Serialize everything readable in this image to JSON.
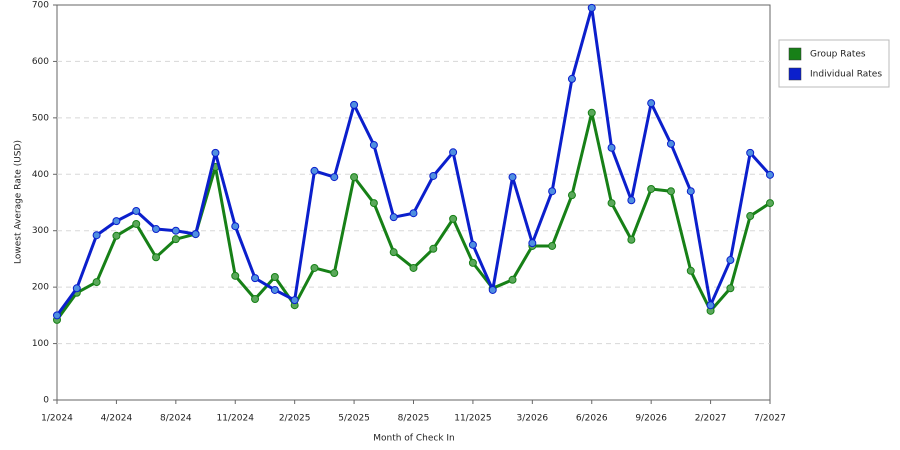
{
  "chart_data": {
    "type": "line",
    "x_label": "Month of Check In",
    "y_label": "Lowest Average Rate (USD)",
    "categories": [
      "1/2024",
      null,
      null,
      "4/2024",
      null,
      null,
      "8/2024",
      null,
      null,
      "11/2024",
      null,
      null,
      "2/2025",
      null,
      null,
      "5/2025",
      null,
      null,
      "8/2025",
      null,
      null,
      "11/2025",
      null,
      null,
      "3/2026",
      null,
      null,
      "6/2026",
      null,
      null,
      "9/2026",
      null,
      null,
      "2/2027",
      null,
      null,
      "7/2027"
    ],
    "series": [
      {
        "name": "Group Rates",
        "color": "#178017",
        "marker": "#5aa85a",
        "values": [
          142,
          190,
          209,
          291,
          312,
          253,
          285,
          294,
          413,
          220,
          179,
          218,
          168,
          234,
          225,
          395,
          349,
          262,
          234,
          268,
          321,
          243,
          198,
          213,
          273,
          273,
          363,
          509,
          349,
          284,
          374,
          370,
          229,
          158,
          198,
          326,
          349
        ]
      },
      {
        "name": "Individual Rates",
        "color": "#0b1fcc",
        "marker": "#4f8fe0",
        "values": [
          150,
          198,
          292,
          317,
          335,
          303,
          300,
          294,
          438,
          308,
          216,
          195,
          177,
          406,
          395,
          523,
          452,
          324,
          331,
          397,
          439,
          275,
          195,
          395,
          278,
          370,
          569,
          695,
          447,
          354,
          526,
          454,
          370,
          168,
          248,
          438,
          399
        ]
      }
    ],
    "ylim": [
      0,
      700
    ],
    "yticks": [
      0,
      100,
      200,
      300,
      400,
      500,
      600,
      700
    ],
    "grid": true
  }
}
